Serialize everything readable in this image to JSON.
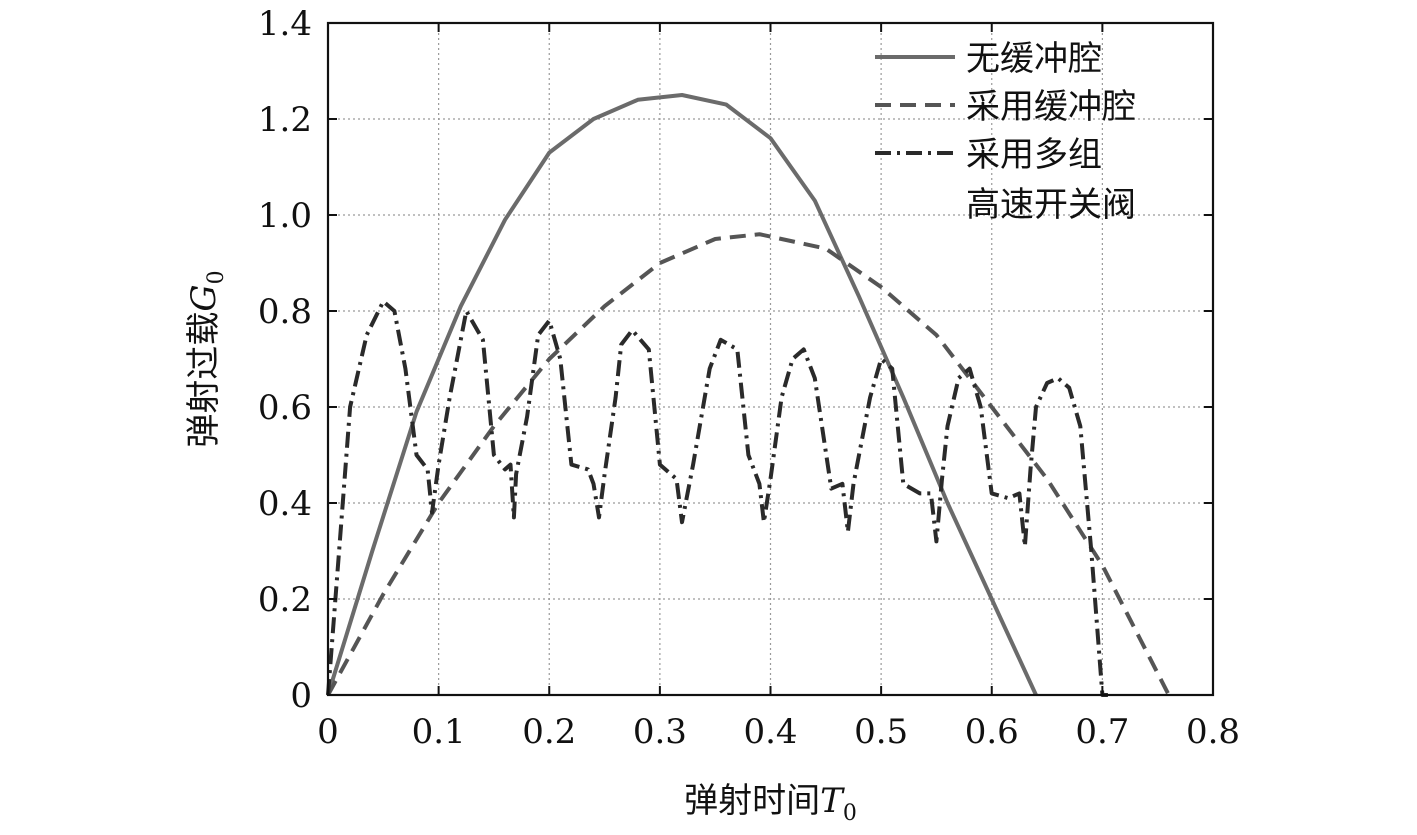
{
  "chart_data": {
    "type": "line",
    "xlabel": "弹射时间",
    "xlabel_symbol": "T",
    "xlabel_sub": "0",
    "ylabel": "弹射过载",
    "ylabel_symbol": "G",
    "ylabel_sub": "0",
    "xlim": [
      0,
      0.8
    ],
    "ylim": [
      0,
      1.4
    ],
    "x_ticks": [
      0,
      0.1,
      0.2,
      0.3,
      0.4,
      0.5,
      0.6,
      0.7,
      0.8
    ],
    "x_tick_labels": [
      "0",
      "0.1",
      "0.2",
      "0.3",
      "0.4",
      "0.5",
      "0.6",
      "0.7",
      "0.8"
    ],
    "y_ticks": [
      0,
      0.2,
      0.4,
      0.6,
      0.8,
      1.0,
      1.2,
      1.4
    ],
    "y_tick_labels": [
      "0",
      "0.2",
      "0.4",
      "0.6",
      "0.8",
      "1.0",
      "1.2",
      "1.4"
    ],
    "grid": true,
    "legend_position": "top-right",
    "series": [
      {
        "name": "无缓冲腔",
        "style": "solid",
        "color": "#6b6b6b",
        "x": [
          0,
          0.04,
          0.08,
          0.12,
          0.16,
          0.2,
          0.24,
          0.28,
          0.32,
          0.36,
          0.4,
          0.44,
          0.48,
          0.52,
          0.56,
          0.6,
          0.64
        ],
        "y": [
          0,
          0.3,
          0.59,
          0.81,
          0.99,
          1.13,
          1.2,
          1.24,
          1.25,
          1.23,
          1.16,
          1.03,
          0.83,
          0.62,
          0.4,
          0.2,
          0
        ]
      },
      {
        "name": "采用缓冲腔",
        "style": "dashed",
        "color": "#555555",
        "x": [
          0,
          0.05,
          0.1,
          0.15,
          0.2,
          0.25,
          0.3,
          0.35,
          0.39,
          0.45,
          0.5,
          0.55,
          0.6,
          0.65,
          0.7,
          0.76
        ],
        "y": [
          0,
          0.21,
          0.4,
          0.56,
          0.7,
          0.81,
          0.9,
          0.95,
          0.96,
          0.93,
          0.85,
          0.75,
          0.6,
          0.45,
          0.27,
          0
        ]
      },
      {
        "name": "采用多组\n高速开关阀",
        "legend_lines": [
          "采用多组",
          "高速开关阀"
        ],
        "style": "dashdot",
        "color": "#2a2a2a",
        "x": [
          0,
          0.01,
          0.02,
          0.035,
          0.05,
          0.06,
          0.07,
          0.08,
          0.09,
          0.094,
          0.1,
          0.11,
          0.125,
          0.14,
          0.15,
          0.16,
          0.165,
          0.168,
          0.17,
          0.18,
          0.19,
          0.2,
          0.21,
          0.22,
          0.235,
          0.24,
          0.245,
          0.25,
          0.26,
          0.265,
          0.275,
          0.29,
          0.3,
          0.31,
          0.315,
          0.32,
          0.33,
          0.345,
          0.355,
          0.37,
          0.38,
          0.39,
          0.394,
          0.4,
          0.41,
          0.42,
          0.43,
          0.44,
          0.455,
          0.465,
          0.47,
          0.475,
          0.48,
          0.49,
          0.5,
          0.51,
          0.52,
          0.535,
          0.545,
          0.55,
          0.555,
          0.56,
          0.57,
          0.58,
          0.59,
          0.6,
          0.615,
          0.625,
          0.63,
          0.635,
          0.64,
          0.65,
          0.66,
          0.67,
          0.68,
          0.69,
          0.7,
          0.705
        ],
        "y": [
          0,
          0.3,
          0.6,
          0.75,
          0.82,
          0.8,
          0.68,
          0.5,
          0.47,
          0.38,
          0.48,
          0.62,
          0.8,
          0.74,
          0.5,
          0.47,
          0.48,
          0.37,
          0.46,
          0.58,
          0.75,
          0.78,
          0.7,
          0.48,
          0.47,
          0.44,
          0.37,
          0.46,
          0.62,
          0.73,
          0.76,
          0.72,
          0.48,
          0.46,
          0.45,
          0.36,
          0.48,
          0.68,
          0.74,
          0.72,
          0.5,
          0.44,
          0.36,
          0.45,
          0.62,
          0.7,
          0.72,
          0.66,
          0.43,
          0.44,
          0.34,
          0.44,
          0.5,
          0.62,
          0.7,
          0.68,
          0.44,
          0.42,
          0.42,
          0.32,
          0.45,
          0.56,
          0.66,
          0.68,
          0.6,
          0.42,
          0.41,
          0.42,
          0.31,
          0.47,
          0.6,
          0.65,
          0.66,
          0.64,
          0.56,
          0.3,
          0,
          0
        ]
      }
    ]
  }
}
